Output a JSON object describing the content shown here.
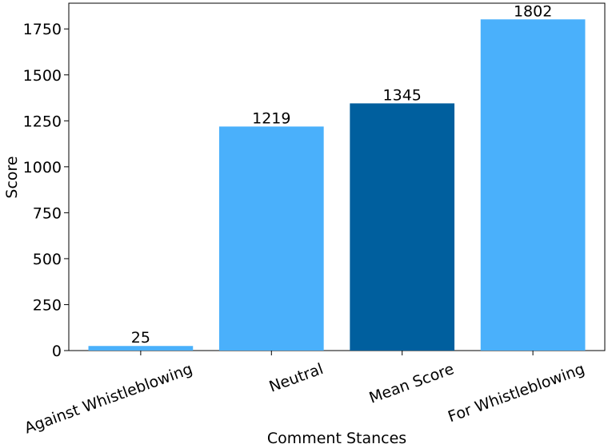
{
  "chart_data": {
    "type": "bar",
    "categories": [
      "Against Whistleblowing",
      "Neutral",
      "Mean Score",
      "For Whistleblowing"
    ],
    "values": [
      25,
      1219,
      1345,
      1802
    ],
    "data_labels": [
      "25",
      "1219",
      "1345",
      "1802"
    ],
    "bar_colors": [
      "#4ab0fb",
      "#4ab0fb",
      "#005f9e",
      "#4ab0fb"
    ],
    "xlabel": "Comment Stances",
    "ylabel": "Score",
    "ylim": [
      0,
      1890
    ],
    "yticks": [
      0,
      250,
      500,
      750,
      1000,
      1250,
      1500,
      1750
    ],
    "ytick_labels": [
      "0",
      "250",
      "500",
      "750",
      "1000",
      "1250",
      "1500",
      "1750"
    ],
    "grid": false,
    "x_tick_rotation_deg": -20
  }
}
